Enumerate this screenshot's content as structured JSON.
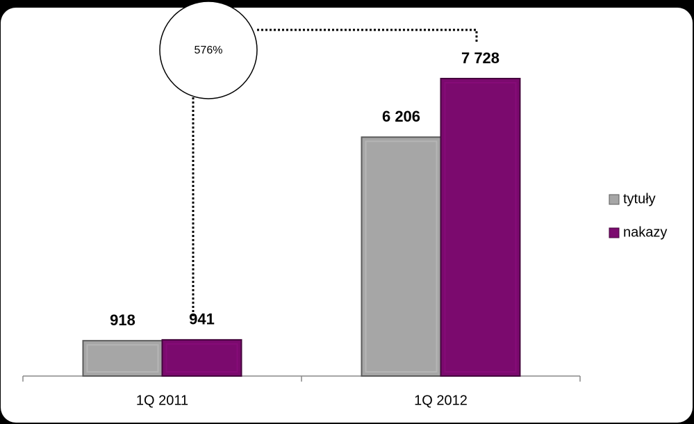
{
  "chart_data": {
    "type": "bar",
    "categories": [
      "1Q 2011",
      "1Q 2012"
    ],
    "series": [
      {
        "name": "tytuły",
        "color": "#a6a6a6",
        "values": [
          918,
          6206
        ],
        "value_labels": [
          "918",
          "6 206"
        ]
      },
      {
        "name": "nakazy",
        "color": "#7b0a6e",
        "values": [
          941,
          7728
        ],
        "value_labels": [
          "941",
          "7 728"
        ]
      }
    ],
    "annotation": "576%",
    "legend": "right"
  }
}
